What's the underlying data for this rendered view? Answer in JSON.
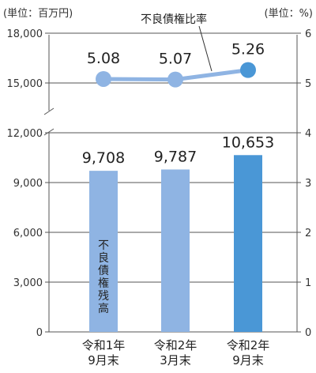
{
  "unit_left": "(単位：百万円)",
  "unit_right": "(単位：%)",
  "chart_data": {
    "type": "bar",
    "categories": [
      [
        "令和1年",
        "9月末"
      ],
      [
        "令和2年",
        "3月末"
      ],
      [
        "令和2年",
        "9月末"
      ]
    ],
    "series": [
      {
        "name": "不良債権残高",
        "type": "bar",
        "axis": "left",
        "values": [
          9708,
          9787,
          10653
        ],
        "labels": [
          "9,708",
          "9,787",
          "10,653"
        ],
        "colors": [
          "#8fb4e3",
          "#8fb4e3",
          "#4a97d6"
        ]
      },
      {
        "name": "不良債権比率",
        "type": "line",
        "axis": "right",
        "values": [
          5.08,
          5.07,
          5.26
        ],
        "labels": [
          "5.08",
          "5.07",
          "5.26"
        ],
        "colors": [
          "#8fb4e3",
          "#8fb4e3",
          "#4a97d6"
        ]
      }
    ],
    "left_axis": {
      "ticks": [
        0,
        3000,
        6000,
        9000,
        12000,
        15000,
        18000
      ],
      "tick_labels": [
        "0",
        "3,000",
        "6,000",
        "9,000",
        "12,000",
        "15,000",
        "18,000"
      ],
      "ylim": [
        0,
        18000
      ]
    },
    "right_axis": {
      "ticks": [
        0,
        1,
        2,
        3,
        4,
        5,
        6
      ],
      "tick_labels": [
        "0",
        "1",
        "2",
        "3",
        "4",
        "5",
        "6"
      ],
      "ylim": [
        0,
        6
      ]
    },
    "axis_break": "between 12,000 and 15,000",
    "grid": true
  }
}
